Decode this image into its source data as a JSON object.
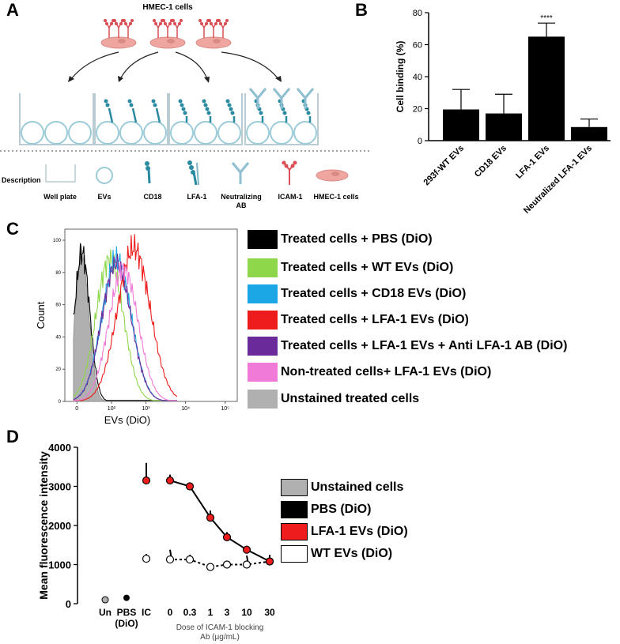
{
  "panels": {
    "a": "A",
    "b": "B",
    "c": "C",
    "d": "D"
  },
  "panel_a": {
    "title": "HMEC-1 cells",
    "description_label": "Description",
    "legend": [
      "Well plate",
      "EVs",
      "CD18",
      "LFA-1",
      "Neutralizing",
      "AB",
      "ICAM-1",
      "HMEC-1 cells"
    ]
  },
  "colors": {
    "teal": "#2a8aa0",
    "light_teal": "#9ccbd8",
    "cell": "#f0a6a0",
    "icam": "#d94f55",
    "well": "#b9ccd3",
    "red": "#ee1c1c",
    "green": "#8ed64a",
    "cyan": "#1ba6e6",
    "purple": "#6a2a9a",
    "pink": "#f07ad8",
    "grey": "#b0b0b0"
  },
  "chart_data": [
    {
      "type": "bar",
      "title": "",
      "ylabel": "Cell binding (%)",
      "xlabel": "",
      "categories": [
        "293f-WT EVs",
        "CD18 EVs",
        "LFA-1 EVs",
        "Neutralized LFA-1 EVs"
      ],
      "values": [
        19.5,
        17,
        65,
        8.5
      ],
      "errors": [
        12.5,
        12,
        8.5,
        5
      ],
      "ylim": [
        0,
        80
      ],
      "yticks": [
        "0",
        "20",
        "40",
        "60",
        "80"
      ],
      "annotations": [
        "****"
      ]
    },
    {
      "type": "line",
      "title": "",
      "ylabel": "Count",
      "xlabel": "EVs (DiO)",
      "yticks": [
        "0",
        "20",
        "40",
        "60",
        "80",
        "100"
      ],
      "xticks": [
        "0",
        "10²",
        "10³",
        "10⁴",
        "10⁵"
      ],
      "series": [
        {
          "name": "Treated cells + PBS (DiO)",
          "peak_x": 0.1,
          "peak": 92
        },
        {
          "name": "Treated cells + WT EVs (DiO)",
          "peak_x": 0.26,
          "peak": 88
        },
        {
          "name": "Treated cells + CD18 EVs (DiO)",
          "peak_x": 0.3,
          "peak": 88
        },
        {
          "name": "Treated cells + LFA-1 EVs (DiO)",
          "peak_x": 0.4,
          "peak": 95
        },
        {
          "name": "Treated cells + LFA-1 EVs + Anti LFA-1 AB (DiO)",
          "peak_x": 0.3,
          "peak": 86
        },
        {
          "name": "Non-treated cells+ LFA-1 EVs (DiO)",
          "peak_x": 0.34,
          "peak": 82
        },
        {
          "name": "Unstained treated cells",
          "peak_x": 0.1,
          "peak": 92
        }
      ]
    },
    {
      "type": "scatter",
      "title": "",
      "ylabel": "Mean fluorescence intensity",
      "xlabel": "Dose of ICAM-1 blocking Ab (μg/mL)",
      "ylim": [
        0,
        4000
      ],
      "yticks": [
        "0",
        "1000",
        "2000",
        "3000",
        "4000"
      ],
      "categories": [
        "Un",
        "PBS",
        "IC",
        "0",
        "0.3",
        "1",
        "3",
        "10",
        "30"
      ],
      "x_sub": [
        "",
        "(DiO)",
        "",
        "",
        "",
        "",
        "",
        "",
        ""
      ],
      "series": [
        {
          "name": "Unstained cells",
          "values": [
            100,
            null,
            null,
            null,
            null,
            null,
            null,
            null,
            null
          ]
        },
        {
          "name": "PBS (DiO)",
          "values": [
            null,
            150,
            null,
            null,
            null,
            null,
            null,
            null,
            null
          ]
        },
        {
          "name": "LFA-1 EVs (DiO)",
          "values": [
            null,
            null,
            3150,
            3150,
            3000,
            2200,
            1700,
            1380,
            1080
          ],
          "errors": [
            null,
            null,
            450,
            150,
            100,
            180,
            130,
            100,
            170
          ]
        },
        {
          "name": "WT EVs (DiO)",
          "values": [
            null,
            null,
            1150,
            1130,
            1130,
            940,
            1000,
            1000,
            1080
          ],
          "errors": [
            null,
            null,
            120,
            250,
            120,
            90,
            90,
            230,
            80
          ]
        }
      ]
    }
  ]
}
